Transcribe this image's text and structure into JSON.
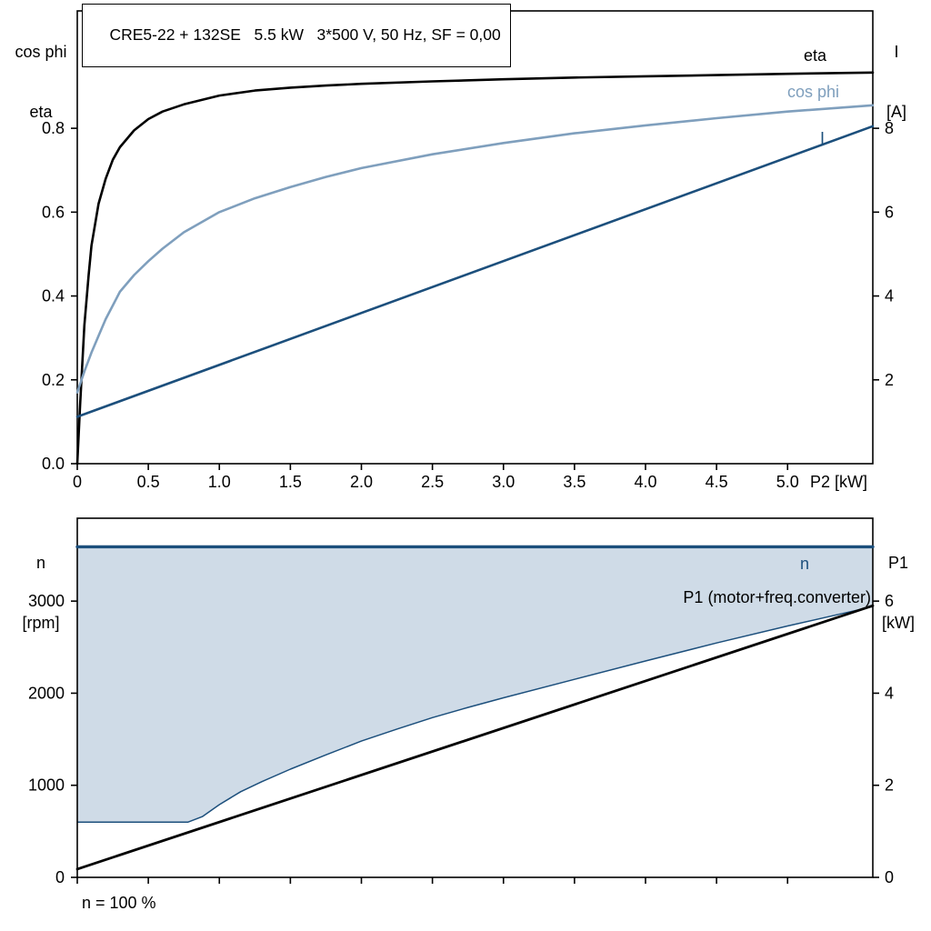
{
  "colors": {
    "eta": "#000000",
    "cos_phi": "#7f9fbd",
    "current": "#1c4f7c",
    "speed": "#1c4f7c",
    "p1": "#000000",
    "area_fill": "#cfdbe7",
    "frame": "#000000"
  },
  "chart_data": [
    {
      "type": "line",
      "title": "CRE5-22 + 132SE   5.5 kW   3*500 V, 50 Hz, SF = 0,00",
      "x_axis": {
        "label": "P2 [kW]",
        "min": 0,
        "max": 5.6,
        "ticks": [
          {
            "v": 0,
            "label": "0"
          },
          {
            "v": 0.5,
            "label": "0.5"
          },
          {
            "v": 1.0,
            "label": "1.0"
          },
          {
            "v": 1.5,
            "label": "1.5"
          },
          {
            "v": 2.0,
            "label": "2.0"
          },
          {
            "v": 2.5,
            "label": "2.5"
          },
          {
            "v": 3.0,
            "label": "3.0"
          },
          {
            "v": 3.5,
            "label": "3.5"
          },
          {
            "v": 4.0,
            "label": "4.0"
          },
          {
            "v": 4.5,
            "label": "4.5"
          },
          {
            "v": 5.0,
            "label": "5.0"
          }
        ]
      },
      "y_left": {
        "label_lines": [
          "cos phi",
          "eta"
        ],
        "min": 0,
        "max": 1.08,
        "ticks": [
          {
            "v": 0.0,
            "label": "0.0"
          },
          {
            "v": 0.2,
            "label": "0.2"
          },
          {
            "v": 0.4,
            "label": "0.4"
          },
          {
            "v": 0.6,
            "label": "0.6"
          },
          {
            "v": 0.8,
            "label": "0.8"
          }
        ]
      },
      "y_right": {
        "label_lines": [
          "I",
          "[A]"
        ],
        "min": 0,
        "max": 10.8,
        "ticks": [
          {
            "v": 2,
            "label": "2"
          },
          {
            "v": 4,
            "label": "4"
          },
          {
            "v": 6,
            "label": "6"
          },
          {
            "v": 8,
            "label": "8"
          }
        ]
      },
      "series": [
        {
          "name": "eta",
          "axis": "left",
          "color_key": "eta",
          "width": 2.6,
          "points": [
            [
              0,
              0
            ],
            [
              0.02,
              0.14
            ],
            [
              0.05,
              0.33
            ],
            [
              0.08,
              0.45
            ],
            [
              0.1,
              0.52
            ],
            [
              0.15,
              0.62
            ],
            [
              0.2,
              0.68
            ],
            [
              0.25,
              0.725
            ],
            [
              0.3,
              0.755
            ],
            [
              0.4,
              0.795
            ],
            [
              0.5,
              0.822
            ],
            [
              0.6,
              0.84
            ],
            [
              0.75,
              0.857
            ],
            [
              1,
              0.878
            ],
            [
              1.25,
              0.89
            ],
            [
              1.5,
              0.897
            ],
            [
              1.75,
              0.902
            ],
            [
              2,
              0.906
            ],
            [
              2.5,
              0.912
            ],
            [
              3,
              0.917
            ],
            [
              3.5,
              0.921
            ],
            [
              4,
              0.924
            ],
            [
              4.5,
              0.927
            ],
            [
              5,
              0.93
            ],
            [
              5.6,
              0.933
            ]
          ]
        },
        {
          "name": "cos phi",
          "axis": "left",
          "color_key": "cos_phi",
          "width": 2.6,
          "points": [
            [
              0,
              0.17
            ],
            [
              0.05,
              0.22
            ],
            [
              0.1,
              0.265
            ],
            [
              0.15,
              0.305
            ],
            [
              0.2,
              0.345
            ],
            [
              0.3,
              0.41
            ],
            [
              0.4,
              0.45
            ],
            [
              0.5,
              0.483
            ],
            [
              0.6,
              0.513
            ],
            [
              0.75,
              0.552
            ],
            [
              1,
              0.6
            ],
            [
              1.25,
              0.633
            ],
            [
              1.5,
              0.66
            ],
            [
              1.75,
              0.684
            ],
            [
              2,
              0.705
            ],
            [
              2.5,
              0.738
            ],
            [
              3,
              0.765
            ],
            [
              3.5,
              0.788
            ],
            [
              4,
              0.807
            ],
            [
              4.5,
              0.824
            ],
            [
              5,
              0.84
            ],
            [
              5.6,
              0.855
            ]
          ]
        },
        {
          "name": "I",
          "axis": "right",
          "color_key": "current",
          "width": 2.6,
          "points": [
            [
              0,
              1.12
            ],
            [
              5.6,
              8.05
            ]
          ]
        }
      ]
    },
    {
      "type": "line+area",
      "x_axis": {
        "label": "",
        "min": 0,
        "max": 5.6,
        "ticks": [
          {
            "v": 0,
            "label": ""
          },
          {
            "v": 0.5,
            "label": ""
          },
          {
            "v": 1.0,
            "label": ""
          },
          {
            "v": 1.5,
            "label": ""
          },
          {
            "v": 2.0,
            "label": ""
          },
          {
            "v": 2.5,
            "label": ""
          },
          {
            "v": 3.0,
            "label": ""
          },
          {
            "v": 3.5,
            "label": ""
          },
          {
            "v": 4.0,
            "label": ""
          },
          {
            "v": 4.5,
            "label": ""
          },
          {
            "v": 5.0,
            "label": ""
          }
        ]
      },
      "y_left": {
        "label_lines": [
          "n",
          "[rpm]"
        ],
        "min": 0,
        "max": 3900,
        "ticks": [
          {
            "v": 0,
            "label": "0"
          },
          {
            "v": 1000,
            "label": "1000"
          },
          {
            "v": 2000,
            "label": "2000"
          },
          {
            "v": 3000,
            "label": "3000"
          }
        ]
      },
      "y_right": {
        "label_lines": [
          "P1",
          "[kW]"
        ],
        "min": 0,
        "max": 7.8,
        "ticks": [
          {
            "v": 0,
            "label": "0"
          },
          {
            "v": 2,
            "label": "2"
          },
          {
            "v": 4,
            "label": "4"
          },
          {
            "v": 6,
            "label": "6"
          }
        ]
      },
      "area": {
        "name": "speed-range",
        "fill_key": "area_fill",
        "edge_color_key": "speed",
        "top": 3590,
        "lower_points": [
          [
            0,
            600
          ],
          [
            0.78,
            600
          ],
          [
            0.88,
            660
          ],
          [
            1,
            790
          ],
          [
            1.15,
            930
          ],
          [
            1.3,
            1040
          ],
          [
            1.5,
            1175
          ],
          [
            1.75,
            1330
          ],
          [
            2,
            1480
          ],
          [
            2.25,
            1610
          ],
          [
            2.5,
            1735
          ],
          [
            2.75,
            1845
          ],
          [
            3,
            1950
          ],
          [
            3.5,
            2150
          ],
          [
            4,
            2350
          ],
          [
            4.5,
            2545
          ],
          [
            5,
            2730
          ],
          [
            5.6,
            2940
          ]
        ]
      },
      "series": [
        {
          "name": "n",
          "axis": "left",
          "color_key": "speed",
          "width": 3.4,
          "points": [
            [
              0,
              3590
            ],
            [
              5.6,
              3590
            ]
          ]
        },
        {
          "name": "P1 (motor+freq.converter)",
          "axis": "right",
          "color_key": "p1",
          "width": 2.8,
          "points": [
            [
              0,
              0.18
            ],
            [
              5.6,
              5.9
            ]
          ]
        }
      ],
      "annotations": [
        {
          "text": "n = 100 %"
        }
      ]
    }
  ]
}
